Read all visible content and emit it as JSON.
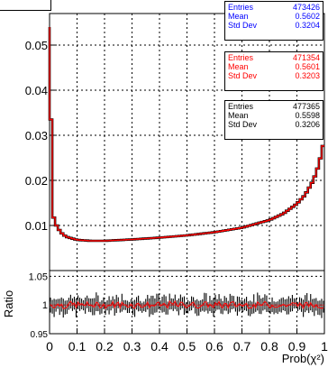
{
  "colors": {
    "blue": "#0000ff",
    "red": "#ff0000",
    "black": "#000000"
  },
  "stats_boxes": [
    {
      "color": "#0000ff",
      "entries_label": "Entries",
      "entries": "473426",
      "mean_label": "Mean",
      "mean": "0.5602",
      "std_label": "Std Dev",
      "std": "0.3204"
    },
    {
      "color": "#ff0000",
      "entries_label": "Entries",
      "entries": "471354",
      "mean_label": "Mean",
      "mean": "0.5601",
      "std_label": "Std Dev",
      "std": "0.3203"
    },
    {
      "color": "#000000",
      "entries_label": "Entries",
      "entries": "477365",
      "mean_label": "Mean",
      "mean": "0.5598",
      "std_label": "Std Dev",
      "std": "0.3206"
    }
  ],
  "chart_data": [
    {
      "type": "line",
      "title": "",
      "xlabel": "",
      "ylabel": "",
      "xlim": [
        0,
        1
      ],
      "ylim": [
        0,
        0.057
      ],
      "grid": true,
      "y_ticks": [
        "0.01",
        "0.02",
        "0.03",
        "0.04",
        "0.05"
      ],
      "y_tick_values": [
        0.01,
        0.02,
        0.03,
        0.04,
        0.05
      ],
      "x": [
        0.0,
        0.01,
        0.02,
        0.04,
        0.06,
        0.1,
        0.15,
        0.2,
        0.3,
        0.4,
        0.5,
        0.6,
        0.7,
        0.8,
        0.85,
        0.9,
        0.93,
        0.96,
        0.98,
        1.0
      ],
      "series": [
        {
          "values": [
            0.054,
            0.013,
            0.0105,
            0.0085,
            0.0075,
            0.0068,
            0.0066,
            0.0066,
            0.0069,
            0.0073,
            0.0078,
            0.0085,
            0.0095,
            0.0112,
            0.0126,
            0.0148,
            0.0168,
            0.02,
            0.0235,
            0.029
          ]
        }
      ]
    },
    {
      "type": "line",
      "title": "",
      "xlabel": "Prob(χ²)",
      "ylabel": "Ratio",
      "xlim": [
        0,
        1
      ],
      "ylim": [
        0.95,
        1.06
      ],
      "grid": true,
      "y_ticks": [
        "0.95",
        "1",
        "1.05"
      ],
      "y_tick_values": [
        0.95,
        1.0,
        1.05
      ],
      "x_ticks": [
        "0",
        "0.1",
        "0.2",
        "0.3",
        "0.4",
        "0.5",
        "0.6",
        "0.7",
        "0.8",
        "0.9",
        "1"
      ],
      "x_tick_values": [
        0,
        0.1,
        0.2,
        0.3,
        0.4,
        0.5,
        0.6,
        0.7,
        0.8,
        0.9,
        1.0
      ],
      "series": [
        {
          "reference": 1.0
        }
      ]
    }
  ]
}
